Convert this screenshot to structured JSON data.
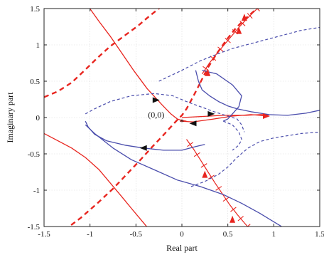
{
  "chart_data": {
    "type": "line",
    "title": "",
    "xlabel": "Real part",
    "ylabel": "Imaginary part",
    "xlim": [
      -1.5,
      1.5
    ],
    "ylim": [
      -1.5,
      1.5
    ],
    "xticks": [
      -1.5,
      -1,
      -0.5,
      0,
      0.5,
      1,
      1.5
    ],
    "xtick_labels": [
      "-1.5",
      "-1",
      "-0.5",
      "0",
      "0.5",
      "1",
      "1.5"
    ],
    "yticks": [
      -1.5,
      -1,
      -0.5,
      0,
      0.5,
      1,
      1.5
    ],
    "ytick_labels": [
      "-1.5",
      "-1",
      "-0.5",
      "0",
      "0.5",
      "1",
      "1.5"
    ],
    "grid": true,
    "colors": {
      "red": "#e8251f",
      "blue": "#4a4dac"
    },
    "annotations": [
      {
        "text": "(0,0)",
        "x": -0.28,
        "y": 0.02
      }
    ],
    "origin_marker": {
      "x": 0.0,
      "y": -0.02,
      "symbol": "*"
    },
    "series": [
      {
        "color": "red",
        "style": "solid",
        "x": [
          -1.03,
          -0.9,
          -0.78,
          -0.65,
          -0.52,
          -0.38,
          -0.22,
          -0.12,
          -0.05,
          0.0,
          0.05
        ],
        "y": [
          1.55,
          1.32,
          1.12,
          0.88,
          0.64,
          0.4,
          0.18,
          0.05,
          -0.02,
          -0.04,
          -0.05
        ]
      },
      {
        "color": "red",
        "style": "solid",
        "x": [
          -0.02,
          0.12,
          0.35,
          0.55,
          0.75,
          0.95
        ],
        "y": [
          -0.05,
          -0.06,
          -0.02,
          0.02,
          0.04,
          0.02
        ]
      },
      {
        "color": "red",
        "style": "solid",
        "x": [
          -1.5,
          -1.35,
          -1.2,
          -1.05,
          -0.9,
          -0.78,
          -0.66,
          -0.55,
          -0.45,
          -0.35
        ],
        "y": [
          -0.22,
          -0.32,
          -0.42,
          -0.55,
          -0.72,
          -0.9,
          -1.08,
          -1.25,
          -1.4,
          -1.55
        ]
      },
      {
        "color": "red",
        "style": "dashed",
        "x": [
          -1.5,
          -1.35,
          -1.2,
          -1.05,
          -0.92,
          -0.78,
          -0.62,
          -0.48,
          -0.35,
          -0.25,
          -0.15
        ],
        "y": [
          0.28,
          0.36,
          0.48,
          0.66,
          0.82,
          0.98,
          1.13,
          1.26,
          1.4,
          1.5,
          1.6
        ]
      },
      {
        "color": "red",
        "style": "dashed",
        "x": [
          -1.28,
          -1.1,
          -0.92,
          -0.75,
          -0.6,
          -0.45,
          -0.32,
          -0.2,
          -0.1,
          -0.04,
          0.0,
          0.05,
          0.12,
          0.2
        ],
        "y": [
          -1.55,
          -1.38,
          -1.18,
          -0.98,
          -0.78,
          -0.58,
          -0.4,
          -0.24,
          -0.1,
          -0.02,
          0.03,
          0.12,
          0.28,
          0.48
        ]
      },
      {
        "color": "red",
        "style": "dashed",
        "x": [
          0.2,
          0.28,
          0.38,
          0.48,
          0.58,
          0.68,
          0.78,
          0.88
        ],
        "y": [
          0.48,
          0.68,
          0.88,
          1.06,
          1.22,
          1.35,
          1.46,
          1.55
        ]
      },
      {
        "color": "red",
        "style": "jagged",
        "x": [
          0.05,
          0.13,
          0.2,
          0.28,
          0.36,
          0.44,
          0.52,
          0.6,
          0.68,
          0.75
        ],
        "y": [
          -0.3,
          -0.44,
          -0.58,
          -0.74,
          -0.9,
          -1.05,
          -1.2,
          -1.33,
          -1.45,
          -1.55
        ]
      },
      {
        "color": "red",
        "style": "jagged",
        "x": [
          0.22,
          0.3,
          0.38,
          0.46,
          0.54,
          0.62,
          0.7,
          0.78,
          0.86
        ],
        "y": [
          0.6,
          0.75,
          0.88,
          1.0,
          1.12,
          1.24,
          1.35,
          1.45,
          1.55
        ]
      },
      {
        "color": "red",
        "style": "solid",
        "x": [
          0.0,
          0.15,
          0.3,
          0.45,
          0.55,
          0.7,
          0.85,
          0.95
        ],
        "y": [
          0.0,
          0.01,
          0.02,
          0.03,
          0.03,
          0.03,
          0.04,
          0.04
        ]
      },
      {
        "color": "blue",
        "style": "solid",
        "x": [
          -1.05,
          -1.02,
          -0.95,
          -0.82,
          -0.62,
          -0.42,
          -0.2,
          0.0,
          0.15,
          0.25
        ],
        "y": [
          -0.05,
          -0.13,
          -0.23,
          -0.32,
          -0.38,
          -0.42,
          -0.45,
          -0.45,
          -0.4,
          -0.37
        ]
      },
      {
        "color": "blue",
        "style": "solid",
        "x": [
          -1.05,
          -0.95,
          -0.75,
          -0.55,
          -0.3,
          -0.05,
          0.2,
          0.45,
          0.65,
          0.85,
          1.02,
          1.15
        ],
        "y": [
          -0.1,
          -0.22,
          -0.42,
          -0.58,
          -0.72,
          -0.86,
          -0.95,
          -1.06,
          -1.18,
          -1.32,
          -1.45,
          -1.55
        ]
      },
      {
        "color": "blue",
        "style": "solid",
        "x": [
          0.15,
          0.18,
          0.22,
          0.3,
          0.4,
          0.5,
          0.6,
          0.75,
          0.95,
          1.15,
          1.35,
          1.5
        ],
        "y": [
          0.65,
          0.5,
          0.38,
          0.3,
          0.22,
          0.16,
          0.12,
          0.08,
          0.04,
          0.03,
          0.06,
          0.1
        ]
      },
      {
        "color": "blue",
        "style": "solid",
        "x": [
          0.22,
          0.38,
          0.55,
          0.65,
          0.62,
          0.55,
          0.5,
          0.45
        ],
        "y": [
          0.65,
          0.6,
          0.45,
          0.3,
          0.15,
          0.05,
          -0.02,
          -0.05
        ]
      },
      {
        "color": "blue",
        "style": "dashed",
        "x": [
          -1.05,
          -0.95,
          -0.78,
          -0.55,
          -0.3,
          -0.1,
          0.05,
          0.2,
          0.35,
          0.5,
          0.6,
          0.65,
          0.68
        ],
        "y": [
          0.05,
          0.12,
          0.22,
          0.3,
          0.33,
          0.3,
          0.22,
          0.15,
          0.08,
          0.02,
          -0.02,
          -0.1,
          -0.2
        ]
      },
      {
        "color": "blue",
        "style": "dashed",
        "x": [
          -0.25,
          0.0,
          0.2,
          0.4,
          0.55,
          0.7,
          0.85,
          1.0,
          1.15,
          1.3,
          1.5
        ],
        "y": [
          0.5,
          0.65,
          0.78,
          0.88,
          0.95,
          1.0,
          1.05,
          1.1,
          1.15,
          1.2,
          1.24
        ]
      },
      {
        "color": "blue",
        "style": "dashed",
        "x": [
          0.1,
          0.25,
          0.4,
          0.5,
          0.6,
          0.72,
          0.85,
          1.0,
          1.15,
          1.3,
          1.5
        ],
        "y": [
          -0.95,
          -0.88,
          -0.78,
          -0.68,
          -0.55,
          -0.42,
          -0.33,
          -0.28,
          -0.25,
          -0.22,
          -0.2
        ]
      },
      {
        "color": "blue",
        "style": "dashed",
        "x": [
          0.45,
          0.55,
          0.62,
          0.65,
          0.62,
          0.55
        ],
        "y": [
          -0.05,
          -0.1,
          -0.2,
          -0.3,
          -0.38,
          -0.45
        ]
      }
    ],
    "arrows": [
      {
        "color": "black",
        "x": -0.28,
        "y": 0.24,
        "dir": "right"
      },
      {
        "color": "black",
        "x": -0.42,
        "y": -0.42,
        "dir": "left"
      },
      {
        "color": "black",
        "x": 0.12,
        "y": -0.08,
        "dir": "left"
      },
      {
        "color": "black",
        "x": 0.32,
        "y": 0.05,
        "dir": "right"
      },
      {
        "color": "red",
        "x": 0.92,
        "y": 0.02,
        "dir": "right"
      },
      {
        "color": "red",
        "x": 0.28,
        "y": 0.62,
        "dir": "up"
      },
      {
        "color": "red",
        "x": 0.62,
        "y": 1.2,
        "dir": "up"
      },
      {
        "color": "red",
        "x": 0.68,
        "y": 1.38,
        "dir": "up"
      },
      {
        "color": "red",
        "x": 0.25,
        "y": -0.78,
        "dir": "up"
      },
      {
        "color": "red",
        "x": 0.55,
        "y": -1.4,
        "dir": "up"
      }
    ]
  }
}
